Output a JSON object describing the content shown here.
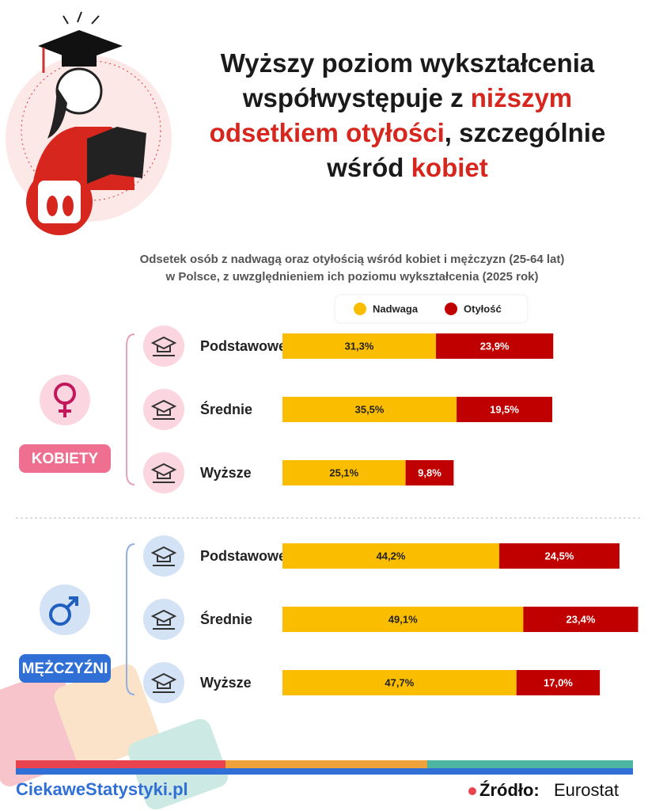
{
  "header": {
    "headline": [
      "Wyższy poziom wykształcenia współwystępuje z ",
      "niższym odsetkiem otyłości",
      ", szczególnie wśród ",
      "kobiet"
    ]
  },
  "chart_data": {
    "type": "bar",
    "orientation": "horizontal",
    "stacked": true,
    "subtitle": [
      "Odsetek osób z nadwagą oraz otyłością wśród kobiet i mężczyzn (25-64 lat)",
      "w Polsce, z uwzględnieniem ich poziomu wykształcenia (2025 rok)"
    ],
    "groups": [
      "KOBIETY",
      "MĘŻCZYŹNI"
    ],
    "categories": [
      "Podstawowe",
      "Średnie",
      "Wyższe",
      "Podstawowe",
      "Średnie",
      "Wyższe"
    ],
    "series": [
      {
        "name": "Nadwaga",
        "color": "#fbbd00",
        "values": [
          31.3,
          35.5,
          25.1,
          44.2,
          49.1,
          47.7
        ],
        "value_labels": [
          "31,3%",
          "35,5%",
          "25,1%",
          "44,2%",
          "49,1%",
          "47,7%"
        ]
      },
      {
        "name": "Otyłość",
        "color": "#c00000",
        "values": [
          23.9,
          19.5,
          9.8,
          24.5,
          23.4,
          17.0
        ],
        "value_labels": [
          "23,9%",
          "19,5%",
          "9,8%",
          "24,5%",
          "23,4%",
          "17,0%"
        ]
      }
    ]
  },
  "footer": {
    "brand": "CiekaweStatystyki.pl",
    "source_label": "Źródło:",
    "source": "Eurostat"
  }
}
